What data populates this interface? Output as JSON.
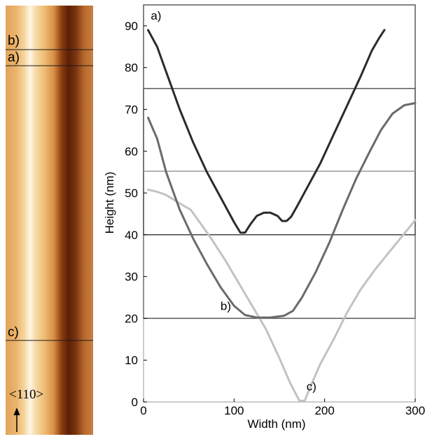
{
  "afm_image": {
    "line_labels": [
      "b)",
      "a)",
      "c)"
    ],
    "direction_label": "<110>"
  },
  "chart_data": {
    "type": "line",
    "xlabel": "Width (nm)",
    "ylabel": "Height (nm)",
    "xlim": [
      0,
      300
    ],
    "ylim": [
      0,
      95
    ],
    "x_ticks": [
      "0",
      "100",
      "200",
      "300"
    ],
    "y_ticks": [
      "0",
      "10",
      "20",
      "30",
      "40",
      "50",
      "60",
      "70",
      "80",
      "90"
    ],
    "series": [
      {
        "name": "a)",
        "color": "#2b2b2b",
        "x": [
          5,
          15,
          25,
          40,
          55,
          70,
          85,
          100,
          107,
          112,
          118,
          125,
          133,
          140,
          148,
          153,
          158,
          163,
          170,
          180,
          195,
          210,
          225,
          240,
          252,
          260,
          266
        ],
        "y": [
          89,
          85,
          79,
          70,
          62,
          55,
          49,
          43,
          40.5,
          40.5,
          42.5,
          44.5,
          45.3,
          45.3,
          44.5,
          43.3,
          43.3,
          44.3,
          47,
          51,
          57,
          64,
          71,
          78,
          84,
          87,
          89
        ]
      },
      {
        "name": "b)",
        "color": "#6a6a6a",
        "x": [
          5,
          15,
          25,
          40,
          55,
          70,
          85,
          100,
          112,
          125,
          140,
          155,
          165,
          175,
          190,
          205,
          220,
          235,
          250,
          262,
          275,
          288,
          300
        ],
        "y": [
          68,
          63,
          55,
          46,
          39,
          33,
          27.5,
          23,
          20.8,
          20.2,
          20.2,
          20.6,
          21.8,
          25,
          31,
          38,
          46,
          53.5,
          60,
          65,
          69,
          71,
          71.5
        ]
      },
      {
        "name": "c)",
        "color": "#c2c2c2",
        "x": [
          5,
          15,
          25,
          40,
          52,
          62,
          75,
          90,
          105,
          120,
          135,
          150,
          162,
          172,
          178,
          185,
          195,
          210,
          225,
          240,
          255,
          270,
          285,
          300
        ],
        "y": [
          50.8,
          50.3,
          49.5,
          47.5,
          46,
          43,
          39,
          34,
          28.5,
          23,
          17.5,
          10.5,
          4.5,
          0.3,
          0.3,
          4,
          9,
          15,
          21.5,
          27,
          31.5,
          35.5,
          39.5,
          43.5
        ]
      }
    ],
    "annotations": [
      {
        "text": "a)",
        "x": 8,
        "y": 91.5
      },
      {
        "text": "b)",
        "x": 85,
        "y": 22
      },
      {
        "text": "c)",
        "x": 180,
        "y": 2.8
      }
    ],
    "reference_lines": [
      {
        "y": 75,
        "x": [
          0,
          300
        ],
        "color": "#555555"
      },
      {
        "y": 40,
        "x": [
          0,
          300
        ],
        "color": "#333333"
      },
      {
        "y": 55.2,
        "x": [
          0,
          300
        ],
        "color": "#999999"
      },
      {
        "y": 20,
        "x": [
          0,
          300
        ],
        "color": "#555555"
      }
    ],
    "panel_frames": [
      {
        "y": [
          0,
          55.2
        ],
        "color": "#aaaaaa"
      },
      {
        "y": [
          20,
          75
        ],
        "color": "#555555"
      },
      {
        "y": [
          40,
          95
        ],
        "color": "#333333"
      }
    ]
  }
}
